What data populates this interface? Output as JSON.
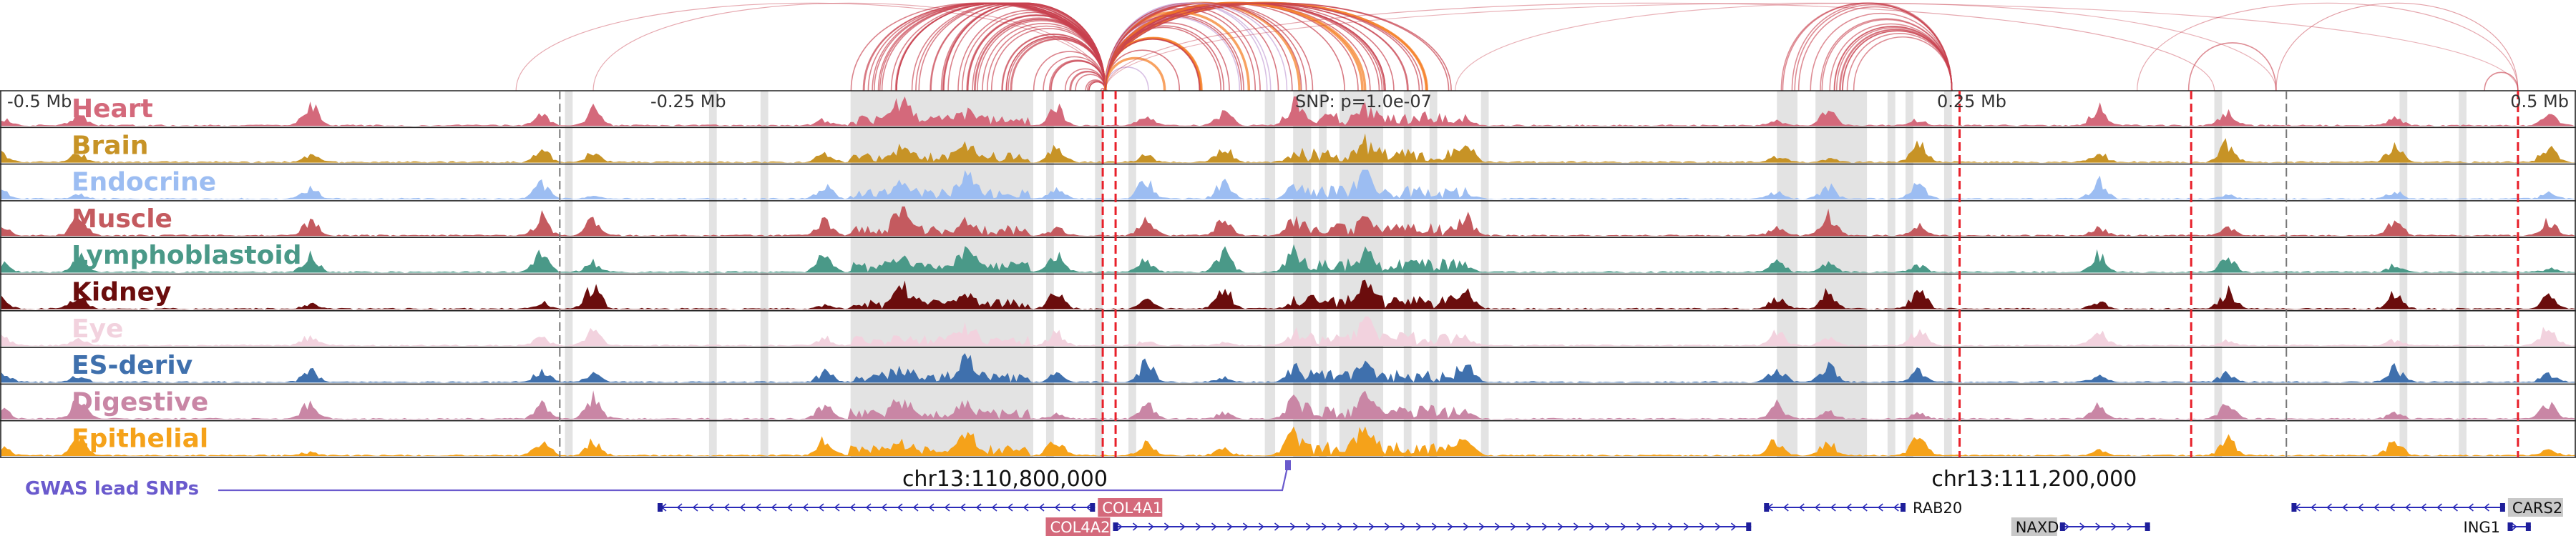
{
  "chart_data": {
    "type": "genome-browser",
    "axis": {
      "tick_labels": [
        "-0.5 Mb",
        "-0.25 Mb",
        "0.25 Mb",
        "0.5 Mb"
      ],
      "tick_values": [
        -0.5,
        -0.25,
        0.25,
        0.5
      ],
      "range_mb": [
        -0.5,
        0.5
      ]
    },
    "snp_label": "SNP: p=1.0e-07",
    "gwas_label": "GWAS lead SNPs",
    "gwas_snp_position": 0.0,
    "chrom_coordinates": [
      {
        "label": "chr13:110,800,000",
        "value": -0.11
      },
      {
        "label": "chr13:111,200,000",
        "value": 0.29
      }
    ],
    "tracks": [
      {
        "name": "Heart",
        "color": "#d4697b"
      },
      {
        "name": "Brain",
        "color": "#c79326"
      },
      {
        "name": "Endocrine",
        "color": "#9cbdf2"
      },
      {
        "name": "Muscle",
        "color": "#c45a5f"
      },
      {
        "name": "Lymphoblastoid",
        "color": "#4a9988"
      },
      {
        "name": "Kidney",
        "color": "#6b0d0d"
      },
      {
        "name": "Eye",
        "color": "#f2d2de"
      },
      {
        "name": "ES-deriv",
        "color": "#3f70ad"
      },
      {
        "name": "Digestive",
        "color": "#c986a5"
      },
      {
        "name": "Epithelial",
        "color": "#f5a21a"
      }
    ],
    "peak_positions_mb": [
      -0.5,
      -0.47,
      -0.38,
      -0.29,
      -0.27,
      -0.18,
      -0.15,
      -0.125,
      -0.09,
      -0.055,
      -0.025,
      0.002,
      0.03,
      0.07,
      0.19,
      0.21,
      0.245,
      0.315,
      0.365,
      0.43,
      0.49
    ],
    "highlight_regions_mb": [
      [
        -0.281,
        -0.278
      ],
      [
        -0.225,
        -0.222
      ],
      [
        -0.205,
        -0.202
      ],
      [
        -0.17,
        -0.099
      ],
      [
        -0.094,
        -0.091
      ],
      [
        -0.075,
        -0.072
      ],
      [
        -0.062,
        -0.059
      ],
      [
        -0.009,
        -0.005
      ],
      [
        0.002,
        0.009
      ],
      [
        0.012,
        0.015
      ],
      [
        0.02,
        0.037
      ],
      [
        0.045,
        0.048
      ],
      [
        0.055,
        0.058
      ],
      [
        0.075,
        0.078
      ],
      [
        0.19,
        0.198
      ],
      [
        0.205,
        0.225
      ],
      [
        0.233,
        0.236
      ],
      [
        0.24,
        0.243
      ],
      [
        0.255,
        0.258
      ],
      [
        0.36,
        0.363
      ],
      [
        0.432,
        0.435
      ],
      [
        0.455,
        0.458
      ]
    ],
    "marker_lines_mb": [
      {
        "x": -0.072,
        "color": "#e8202a",
        "style": "dashed"
      },
      {
        "x": -0.067,
        "color": "#e8202a",
        "style": "dashed"
      },
      {
        "x": 0.261,
        "color": "#e8202a",
        "style": "dashed"
      },
      {
        "x": 0.351,
        "color": "#e8202a",
        "style": "dashed"
      },
      {
        "x": 0.478,
        "color": "#e8202a",
        "style": "dashed"
      },
      {
        "x": -0.283,
        "color": "#777777",
        "style": "dashed"
      },
      {
        "x": 0.388,
        "color": "#777777",
        "style": "dashed"
      }
    ],
    "loop_anchors_mb": [
      -0.071,
      0.258,
      0.384,
      0.478
    ],
    "loop_color": "#c8414f",
    "loop_highlight_color": "#f57b1e",
    "loop_highlight_2_color": "#c7a5d8",
    "genes": [
      {
        "name": "COL4A1",
        "start": -0.245,
        "end": -0.075,
        "strand": "-",
        "row": 0,
        "label_bg": "#d4697b",
        "label_color": "#ffffff",
        "label_pos": "right"
      },
      {
        "name": "COL4A2",
        "start": -0.068,
        "end": 0.18,
        "strand": "+",
        "row": 1,
        "label_bg": "#d4697b",
        "label_color": "#ffffff",
        "label_pos": "left"
      },
      {
        "name": "RAB20",
        "start": 0.185,
        "end": 0.24,
        "strand": "-",
        "row": 0,
        "label_bg": "none",
        "label_color": "#111111",
        "label_pos": "right"
      },
      {
        "name": "NAXD",
        "start": 0.3,
        "end": 0.335,
        "strand": "+",
        "row": 1,
        "label_bg": "#c8c8c8",
        "label_color": "#111111",
        "label_pos": "left"
      },
      {
        "name": "CARS2",
        "start": 0.39,
        "end": 0.473,
        "strand": "-",
        "row": 0,
        "label_bg": "#c8c8c8",
        "label_color": "#111111",
        "label_pos": "right"
      },
      {
        "name": "ING1",
        "start": 0.474,
        "end": 0.483,
        "strand": "+",
        "row": 1,
        "label_bg": "none",
        "label_color": "#111111",
        "label_pos": "left"
      }
    ]
  }
}
